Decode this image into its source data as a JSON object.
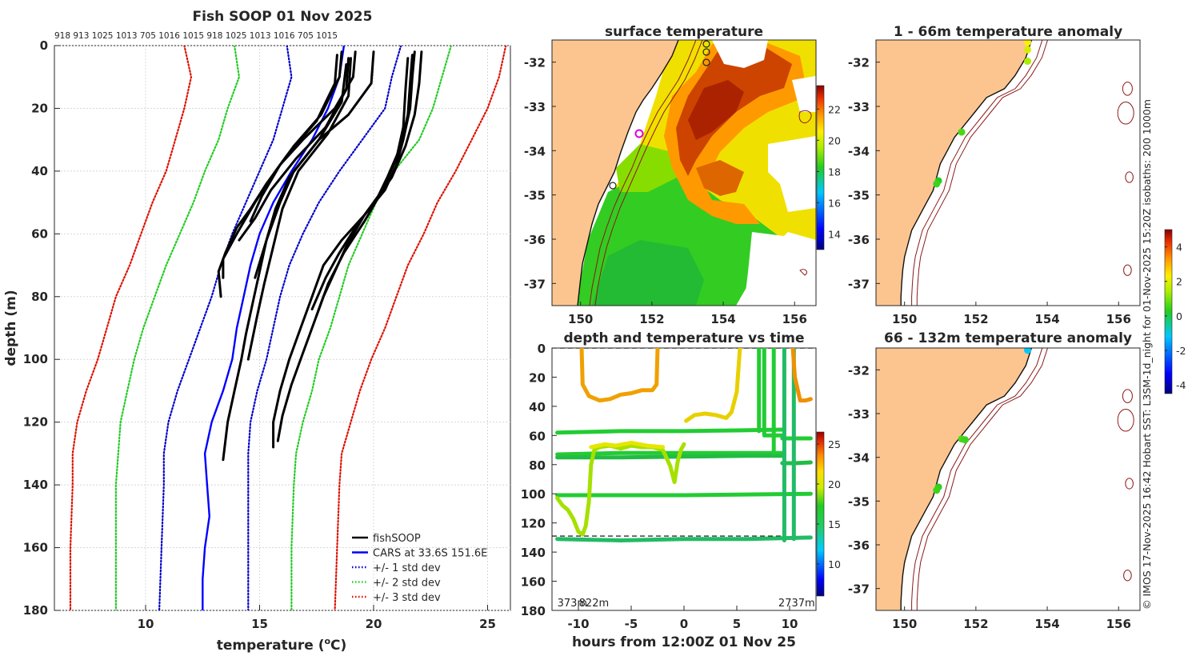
{
  "chart_data": [
    {
      "id": "profile",
      "type": "line",
      "title": "Fish SOOP 01 Nov 2025",
      "xlabel": "temperature (",
      "xlabel_sup": "o",
      "xlabel_end": "C)",
      "ylabel": "depth (m)",
      "xlim": [
        6,
        26
      ],
      "ylim": [
        0,
        180
      ],
      "xticks": [
        10,
        15,
        20,
        25
      ],
      "yticks": [
        0,
        20,
        40,
        60,
        80,
        100,
        120,
        140,
        160,
        180
      ],
      "top_labels": [
        "918",
        "913",
        "1025",
        "1013",
        "705",
        "1016",
        "1015",
        "918",
        "1025",
        "1013",
        "1016",
        "705",
        "1015"
      ],
      "legend": [
        {
          "label": "fishSOOP",
          "color": "#000000",
          "style": "solid"
        },
        {
          "label": "CARS at 33.6S 151.6E",
          "color": "#0000ff",
          "style": "solid"
        },
        {
          "label": "+/- 1 std dev",
          "color": "#0000cc",
          "style": "dotted"
        },
        {
          "label": "+/- 2 std dev",
          "color": "#22cc22",
          "style": "dotted"
        },
        {
          "label": "+/- 3 std dev",
          "color": "#dd1100",
          "style": "dotted"
        }
      ],
      "cars_mean": [
        [
          18.7,
          0
        ],
        [
          18.5,
          10
        ],
        [
          18.0,
          20
        ],
        [
          17.3,
          30
        ],
        [
          16.4,
          40
        ],
        [
          15.6,
          50
        ],
        [
          15.0,
          60
        ],
        [
          14.6,
          70
        ],
        [
          14.3,
          80
        ],
        [
          14.0,
          90
        ],
        [
          13.8,
          100
        ],
        [
          13.4,
          110
        ],
        [
          12.9,
          120
        ],
        [
          12.6,
          130
        ],
        [
          12.7,
          140
        ],
        [
          12.8,
          150
        ],
        [
          12.6,
          160
        ],
        [
          12.5,
          170
        ],
        [
          12.5,
          180
        ]
      ],
      "std_minus1": [
        [
          16.2,
          0
        ],
        [
          16.4,
          10
        ],
        [
          16.0,
          20
        ],
        [
          15.6,
          30
        ],
        [
          15.0,
          40
        ],
        [
          14.4,
          50
        ],
        [
          13.8,
          60
        ],
        [
          13.3,
          70
        ],
        [
          12.9,
          80
        ],
        [
          12.4,
          90
        ],
        [
          11.9,
          100
        ],
        [
          11.4,
          110
        ],
        [
          11.0,
          120
        ],
        [
          10.8,
          130
        ],
        [
          10.8,
          140
        ],
        [
          10.7,
          160
        ],
        [
          10.6,
          180
        ]
      ],
      "std_plus1": [
        [
          21.2,
          0
        ],
        [
          20.8,
          10
        ],
        [
          20.5,
          20
        ],
        [
          19.5,
          30
        ],
        [
          18.5,
          40
        ],
        [
          17.6,
          50
        ],
        [
          16.9,
          60
        ],
        [
          16.3,
          70
        ],
        [
          15.9,
          80
        ],
        [
          15.6,
          90
        ],
        [
          15.3,
          100
        ],
        [
          14.9,
          110
        ],
        [
          14.6,
          120
        ],
        [
          14.5,
          130
        ],
        [
          14.5,
          140
        ],
        [
          14.5,
          160
        ],
        [
          14.5,
          180
        ]
      ],
      "std_minus2": [
        [
          13.9,
          0
        ],
        [
          14.1,
          10
        ],
        [
          13.6,
          20
        ],
        [
          13.2,
          30
        ],
        [
          12.6,
          40
        ],
        [
          12.1,
          50
        ],
        [
          11.5,
          60
        ],
        [
          10.9,
          70
        ],
        [
          10.4,
          80
        ],
        [
          9.9,
          90
        ],
        [
          9.5,
          100
        ],
        [
          9.2,
          110
        ],
        [
          8.9,
          120
        ],
        [
          8.8,
          130
        ],
        [
          8.7,
          140
        ],
        [
          8.7,
          160
        ],
        [
          8.7,
          180
        ]
      ],
      "std_plus2": [
        [
          23.4,
          0
        ],
        [
          23.0,
          10
        ],
        [
          22.6,
          20
        ],
        [
          22.0,
          30
        ],
        [
          20.9,
          40
        ],
        [
          20.1,
          50
        ],
        [
          19.5,
          60
        ],
        [
          18.9,
          70
        ],
        [
          18.5,
          80
        ],
        [
          18.1,
          90
        ],
        [
          17.6,
          100
        ],
        [
          17.3,
          110
        ],
        [
          16.9,
          120
        ],
        [
          16.6,
          130
        ],
        [
          16.5,
          140
        ],
        [
          16.4,
          160
        ],
        [
          16.4,
          180
        ]
      ],
      "std_minus3": [
        [
          11.7,
          0
        ],
        [
          12.0,
          10
        ],
        [
          11.7,
          20
        ],
        [
          11.3,
          30
        ],
        [
          10.9,
          40
        ],
        [
          10.3,
          50
        ],
        [
          9.8,
          60
        ],
        [
          9.3,
          70
        ],
        [
          8.7,
          80
        ],
        [
          8.3,
          90
        ],
        [
          7.9,
          100
        ],
        [
          7.4,
          110
        ],
        [
          7.0,
          120
        ],
        [
          6.8,
          130
        ],
        [
          6.8,
          140
        ],
        [
          6.7,
          160
        ],
        [
          6.7,
          180
        ]
      ],
      "std_plus3": [
        [
          25.8,
          0
        ],
        [
          25.5,
          10
        ],
        [
          25.0,
          20
        ],
        [
          24.3,
          30
        ],
        [
          23.6,
          40
        ],
        [
          22.8,
          50
        ],
        [
          22.2,
          60
        ],
        [
          21.5,
          70
        ],
        [
          21.0,
          80
        ],
        [
          20.5,
          90
        ],
        [
          19.9,
          100
        ],
        [
          19.4,
          110
        ],
        [
          19.0,
          120
        ],
        [
          18.6,
          130
        ],
        [
          18.5,
          140
        ],
        [
          18.4,
          160
        ],
        [
          18.3,
          180
        ]
      ],
      "fishsoop_profiles": [
        [
          [
            18.6,
            2
          ],
          [
            18.5,
            10
          ],
          [
            17.7,
            22
          ],
          [
            16.5,
            32
          ],
          [
            15.7,
            40
          ],
          [
            14.8,
            50
          ],
          [
            14.0,
            60
          ],
          [
            13.4,
            68
          ],
          [
            13.4,
            74
          ]
        ],
        [
          [
            18.4,
            3
          ],
          [
            18.3,
            12
          ],
          [
            17.5,
            24
          ],
          [
            16.2,
            35
          ],
          [
            15.3,
            44
          ],
          [
            14.6,
            52
          ],
          [
            14.0,
            58
          ],
          [
            13.5,
            66
          ],
          [
            13.2,
            72
          ],
          [
            13.3,
            80
          ]
        ],
        [
          [
            18.9,
            4
          ],
          [
            18.8,
            14
          ],
          [
            17.9,
            26
          ],
          [
            16.6,
            36
          ],
          [
            15.5,
            46
          ],
          [
            14.8,
            55
          ],
          [
            14.1,
            62
          ]
        ],
        [
          [
            19.2,
            2
          ],
          [
            19.1,
            10
          ],
          [
            18.3,
            20
          ],
          [
            16.9,
            30
          ],
          [
            15.9,
            38
          ],
          [
            15.1,
            48
          ],
          [
            14.6,
            56
          ]
        ],
        [
          [
            20.0,
            2
          ],
          [
            19.9,
            12
          ],
          [
            18.9,
            22
          ],
          [
            17.6,
            30
          ],
          [
            16.5,
            40
          ],
          [
            15.9,
            50
          ],
          [
            15.3,
            62
          ],
          [
            14.8,
            74
          ]
        ],
        [
          [
            18.8,
            6
          ],
          [
            18.6,
            18
          ],
          [
            17.6,
            30
          ],
          [
            16.3,
            42
          ],
          [
            15.7,
            52
          ],
          [
            15.3,
            62
          ],
          [
            15.0,
            72
          ],
          [
            14.7,
            82
          ],
          [
            14.4,
            92
          ],
          [
            14.2,
            100
          ],
          [
            13.9,
            110
          ],
          [
            13.6,
            120
          ],
          [
            13.4,
            132
          ]
        ],
        [
          [
            19.0,
            4
          ],
          [
            18.9,
            16
          ],
          [
            18.0,
            28
          ],
          [
            16.7,
            40
          ],
          [
            16.0,
            52
          ],
          [
            15.6,
            64
          ],
          [
            15.2,
            76
          ],
          [
            14.9,
            86
          ],
          [
            14.5,
            100
          ]
        ],
        [
          [
            21.8,
            2
          ],
          [
            21.7,
            10
          ],
          [
            21.6,
            20
          ],
          [
            21.3,
            30
          ],
          [
            21.0,
            38
          ],
          [
            20.5,
            46
          ],
          [
            19.6,
            54
          ],
          [
            18.6,
            62
          ],
          [
            17.8,
            70
          ],
          [
            17.3,
            80
          ],
          [
            16.8,
            90
          ],
          [
            16.3,
            100
          ],
          [
            15.9,
            110
          ],
          [
            15.6,
            120
          ],
          [
            15.6,
            128
          ]
        ],
        [
          [
            21.5,
            4
          ],
          [
            21.4,
            14
          ],
          [
            21.3,
            26
          ],
          [
            21.0,
            36
          ],
          [
            20.4,
            46
          ],
          [
            19.6,
            56
          ],
          [
            18.7,
            66
          ],
          [
            18.0,
            76
          ],
          [
            17.4,
            88
          ],
          [
            16.9,
            98
          ],
          [
            16.4,
            108
          ],
          [
            16.0,
            118
          ],
          [
            15.8,
            126
          ]
        ],
        [
          [
            22.1,
            2
          ],
          [
            22.0,
            12
          ],
          [
            21.8,
            22
          ],
          [
            21.4,
            32
          ],
          [
            20.8,
            42
          ],
          [
            20.0,
            50
          ],
          [
            19.2,
            58
          ],
          [
            18.5,
            66
          ],
          [
            17.9,
            74
          ],
          [
            17.3,
            84
          ]
        ],
        [
          [
            21.7,
            3
          ],
          [
            21.6,
            12
          ],
          [
            21.5,
            22
          ],
          [
            21.2,
            32
          ],
          [
            20.6,
            42
          ],
          [
            20.2,
            48
          ],
          [
            19.6,
            54
          ],
          [
            18.8,
            64
          ],
          [
            18.3,
            72
          ],
          [
            17.8,
            80
          ],
          [
            17.5,
            86
          ]
        ]
      ]
    },
    {
      "id": "sst_map",
      "type": "heatmap",
      "title": "surface temperature",
      "xticks": [
        150,
        152,
        154,
        156
      ],
      "yticks": [
        -32,
        -33,
        -34,
        -35,
        -36,
        -37
      ],
      "xlim": [
        149.2,
        156.6
      ],
      "ylim": [
        -37.5,
        -31.5
      ],
      "colorbar_ticks": [
        14,
        16,
        18,
        20,
        22
      ],
      "colorbar_range": [
        13,
        23.5
      ]
    },
    {
      "id": "depth_time",
      "type": "scatter",
      "title": "depth and temperature vs time",
      "xlabel": "hours from 12:00Z 01 Nov 25",
      "xticks": [
        -10,
        -5,
        0,
        5,
        10
      ],
      "yticks": [
        0,
        20,
        40,
        60,
        80,
        100,
        120,
        140,
        160,
        180
      ],
      "xlim": [
        -12.5,
        12.5
      ],
      "ylim": [
        0,
        180
      ],
      "colorbar_ticks": [
        10,
        15,
        20,
        25
      ],
      "colorbar_range": [
        6,
        26.5
      ],
      "bottom_labels": [
        "373m",
        "822m",
        "2737m"
      ],
      "dashed_levels": [
        0,
        129
      ]
    },
    {
      "id": "anomaly_top",
      "type": "scatter",
      "title": "1 - 66m temperature anomaly",
      "xticks": [
        150,
        152,
        154,
        156
      ],
      "yticks": [
        -32,
        -33,
        -34,
        -35,
        -36,
        -37
      ],
      "xlim": [
        149.2,
        156.6
      ],
      "ylim": [
        -37.5,
        -31.5
      ],
      "points": [
        [
          153.45,
          -31.55,
          2.0
        ],
        [
          153.45,
          -31.72,
          1.5
        ],
        [
          153.45,
          -31.98,
          1.0
        ],
        [
          151.6,
          -33.58,
          0.3
        ],
        [
          150.95,
          -34.68,
          0.0
        ],
        [
          150.9,
          -34.75,
          0.2
        ]
      ]
    },
    {
      "id": "anomaly_bottom",
      "type": "scatter",
      "title": "66 - 132m temperature anomaly",
      "xticks": [
        150,
        152,
        154,
        156
      ],
      "yticks": [
        -32,
        -33,
        -34,
        -35,
        -36,
        -37
      ],
      "xlim": [
        149.2,
        156.6
      ],
      "ylim": [
        -37.5,
        -31.5
      ],
      "points": [
        [
          153.45,
          -31.55,
          -2.0
        ],
        [
          151.6,
          -33.58,
          0.3
        ],
        [
          151.7,
          -33.6,
          0.2
        ],
        [
          150.95,
          -34.68,
          0.1
        ],
        [
          150.9,
          -34.75,
          0.2
        ]
      ],
      "colorbar_ticks": [
        -4,
        -2,
        0,
        2,
        4
      ],
      "colorbar_range": [
        -4.5,
        5
      ]
    }
  ],
  "side_caption": "© IMOS 17-Nov-2025 16:42 Hobart SST: L3SM-1d_night for 01-Nov-2025 15:20Z isobaths: 200  1000m"
}
